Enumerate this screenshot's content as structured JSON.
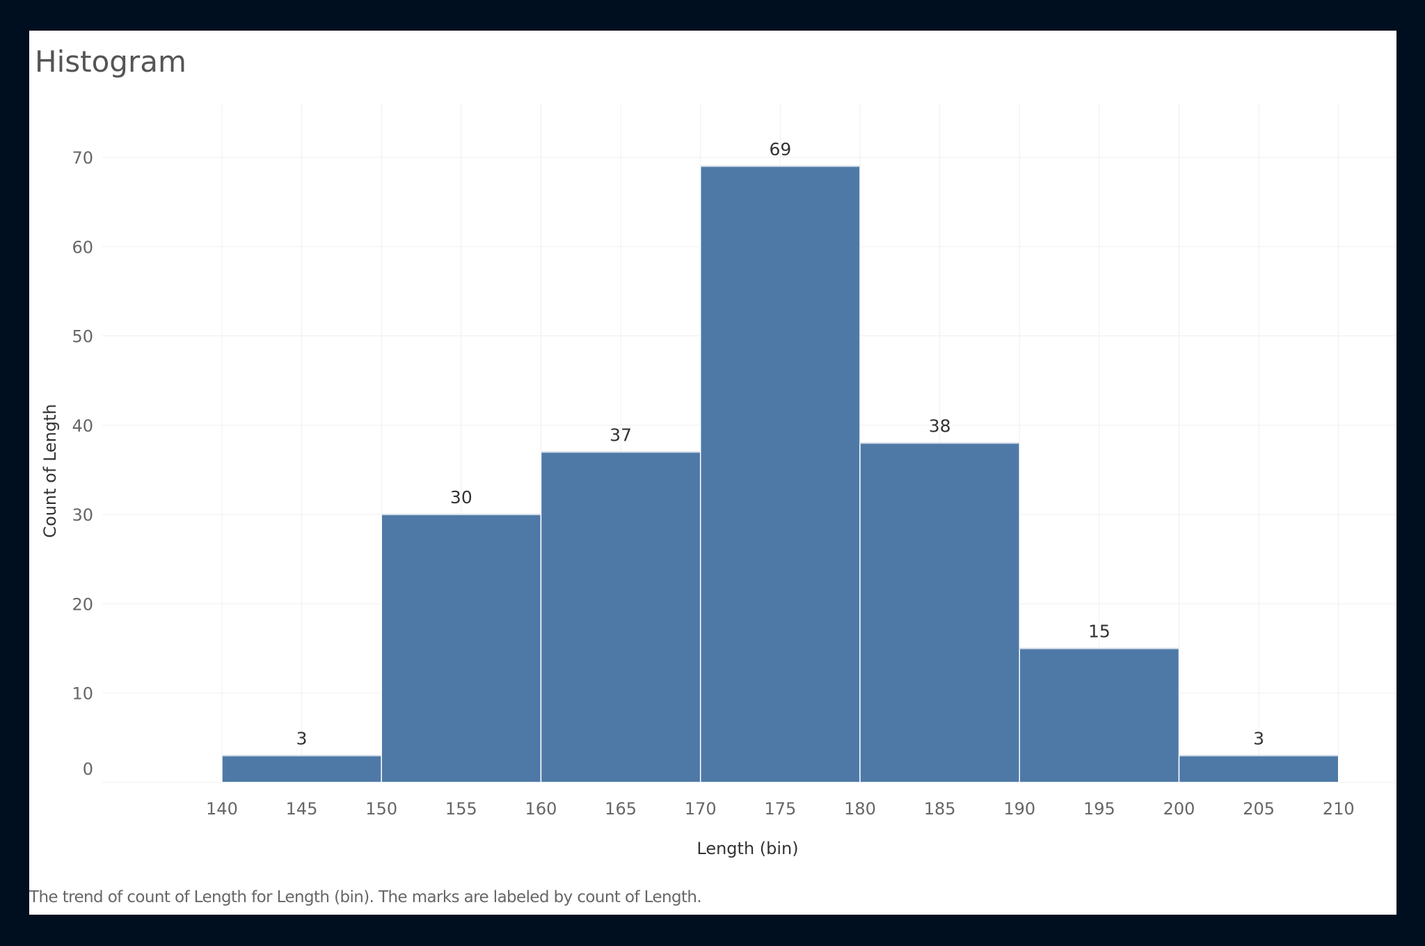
{
  "title": "Histogram",
  "caption": "The trend of count of Length for Length (bin).  The marks are labeled by count of Length.",
  "chart_data": {
    "type": "bar",
    "title": "Histogram",
    "xlabel": "Length (bin)",
    "ylabel": "Count of Length",
    "bins": [
      {
        "start": 140,
        "end": 150,
        "value": 3
      },
      {
        "start": 150,
        "end": 160,
        "value": 30
      },
      {
        "start": 160,
        "end": 170,
        "value": 37
      },
      {
        "start": 170,
        "end": 180,
        "value": 69
      },
      {
        "start": 180,
        "end": 190,
        "value": 38
      },
      {
        "start": 190,
        "end": 200,
        "value": 15
      },
      {
        "start": 200,
        "end": 210,
        "value": 3
      }
    ],
    "x_ticks": [
      140,
      145,
      150,
      155,
      160,
      165,
      170,
      175,
      180,
      185,
      190,
      195,
      200,
      205,
      210
    ],
    "y_ticks": [
      0,
      10,
      20,
      30,
      40,
      50,
      60,
      70
    ],
    "xlim": [
      132.5,
      213.5
    ],
    "ylim": [
      0,
      76
    ],
    "grid": true,
    "bar_color": "#4e79a7",
    "data_labels": true
  }
}
